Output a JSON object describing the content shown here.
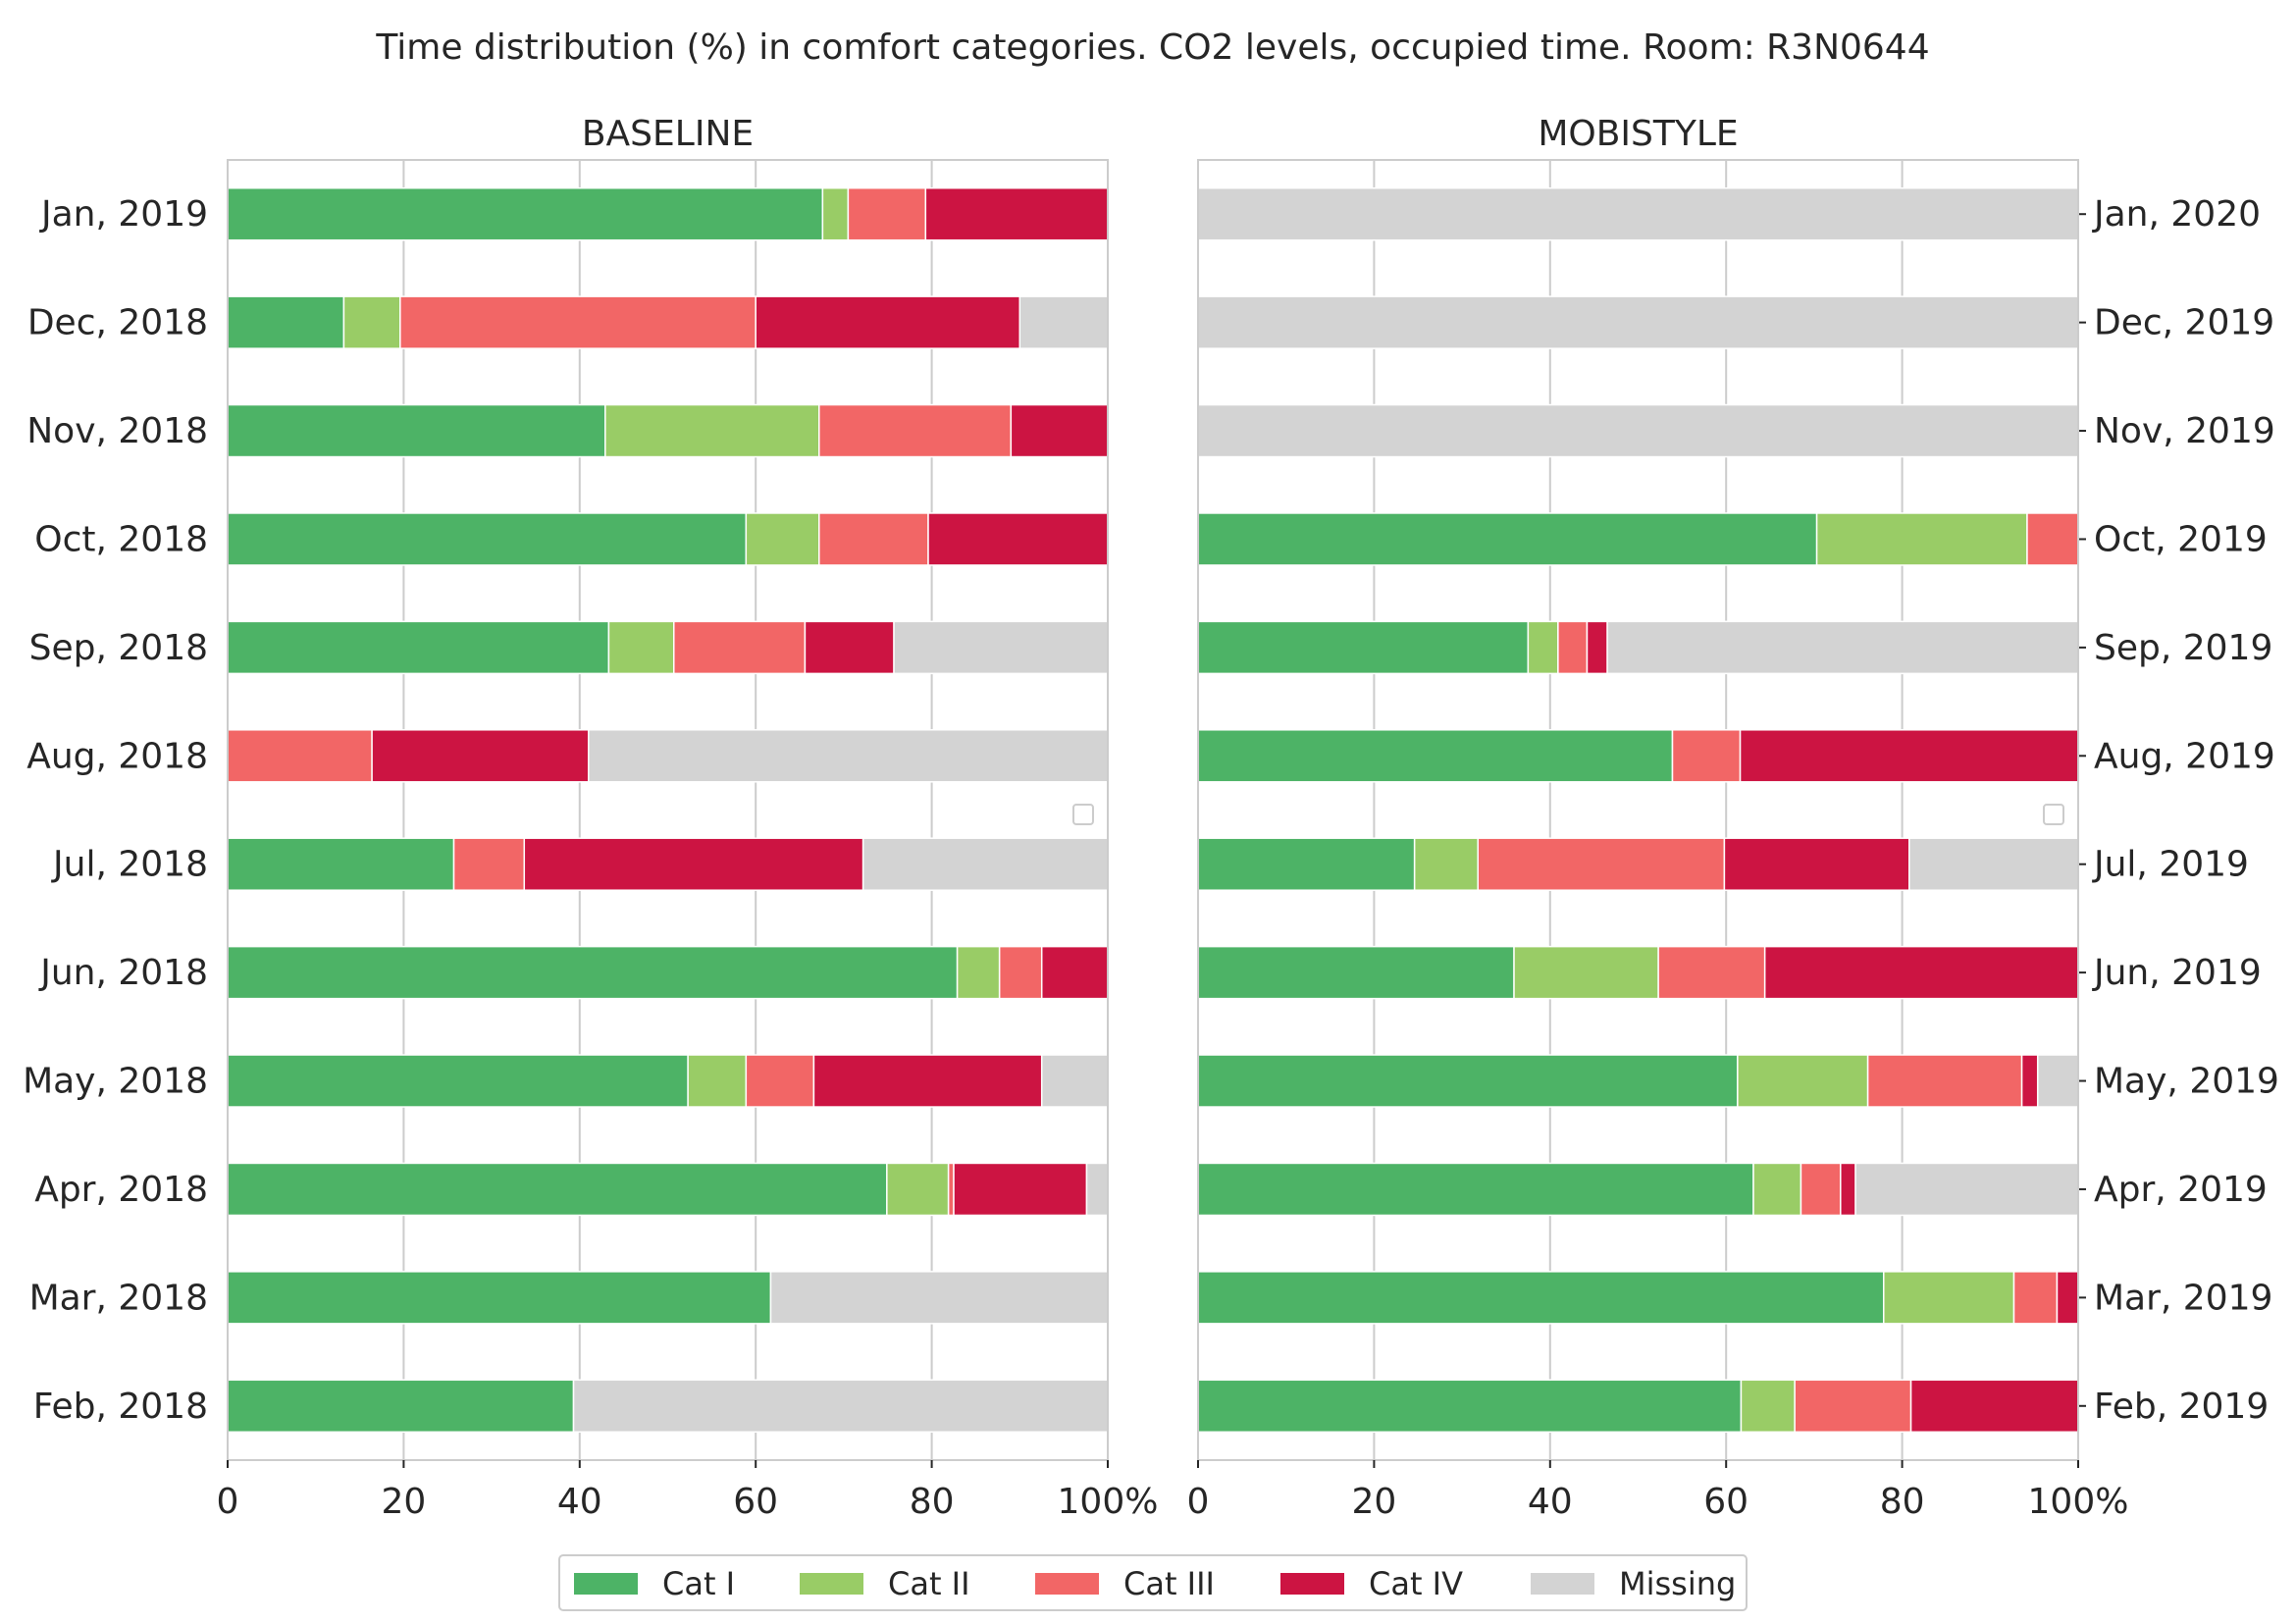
{
  "chart_data": {
    "type": "bar",
    "orientation": "horizontal",
    "stacked": true,
    "title": "Time distribution (%) in comfort categories. CO2 levels, occupied time. Room: R3N0644",
    "xlim": [
      0,
      100
    ],
    "xticks": [
      "0",
      "20",
      "40",
      "60",
      "80",
      "100%"
    ],
    "grid": true,
    "legend_position": "bottom-center",
    "legend": [
      "Cat I",
      "Cat II",
      "Cat III",
      "Cat IV",
      "Missing"
    ],
    "colors": [
      "#4db366",
      "#99cc66",
      "#f26666",
      "#cc1442",
      "#d3d3d3"
    ],
    "panels": [
      {
        "title": "BASELINE",
        "label_side": "left",
        "categories": [
          "Jan, 2019",
          "Dec, 2018",
          "Nov, 2018",
          "Oct, 2018",
          "Sep, 2018",
          "Aug, 2018",
          "Jul, 2018",
          "Jun, 2018",
          "May, 2018",
          "Apr, 2018",
          "Mar, 2018",
          "Feb, 2018"
        ],
        "series": [
          {
            "name": "Cat I",
            "values": [
              67.6,
              13.2,
              42.9,
              58.9,
              43.3,
              0,
              25.7,
              82.9,
              52.3,
              74.9,
              61.7,
              39.3
            ]
          },
          {
            "name": "Cat II",
            "values": [
              2.9,
              6.4,
              24.3,
              8.3,
              7.4,
              0,
              0,
              4.8,
              6.6,
              7.0,
              0,
              0
            ]
          },
          {
            "name": "Cat III",
            "values": [
              8.8,
              40.4,
              21.8,
              12.4,
              14.9,
              16.4,
              8.0,
              4.8,
              7.7,
              0.6,
              0,
              0
            ]
          },
          {
            "name": "Cat IV",
            "values": [
              20.7,
              30.0,
              11.0,
              20.4,
              10.1,
              24.6,
              38.5,
              7.5,
              25.9,
              15.1,
              0,
              0
            ]
          },
          {
            "name": "Missing",
            "values": [
              0,
              10.0,
              0,
              0,
              24.3,
              59.0,
              27.8,
              0,
              7.5,
              2.4,
              38.3,
              60.7
            ]
          }
        ]
      },
      {
        "title": "MOBISTYLE",
        "label_side": "right",
        "categories": [
          "Jan, 2020",
          "Dec, 2019",
          "Nov, 2019",
          "Oct, 2019",
          "Sep, 2019",
          "Aug, 2019",
          "Jul, 2019",
          "Jun, 2019",
          "May, 2019",
          "Apr, 2019",
          "Mar, 2019",
          "Feb, 2019"
        ],
        "series": [
          {
            "name": "Cat I",
            "values": [
              0,
              0,
              0,
              70.3,
              37.5,
              53.9,
              24.6,
              35.9,
              61.3,
              63.1,
              77.9,
              61.7
            ]
          },
          {
            "name": "Cat II",
            "values": [
              0,
              0,
              0,
              23.9,
              3.4,
              0,
              7.2,
              16.4,
              14.8,
              5.4,
              14.8,
              6.1
            ]
          },
          {
            "name": "Cat III",
            "values": [
              0,
              0,
              0,
              5.8,
              3.3,
              7.7,
              28.0,
              12.1,
              17.5,
              4.5,
              4.9,
              13.2
            ]
          },
          {
            "name": "Cat IV",
            "values": [
              0,
              0,
              0,
              0,
              2.3,
              38.4,
              21.0,
              35.6,
              1.8,
              1.7,
              2.4,
              19.0
            ]
          },
          {
            "name": "Missing",
            "values": [
              100,
              100,
              100,
              0,
              53.5,
              0,
              19.2,
              0,
              4.6,
              25.3,
              0,
              0
            ]
          }
        ]
      }
    ]
  }
}
